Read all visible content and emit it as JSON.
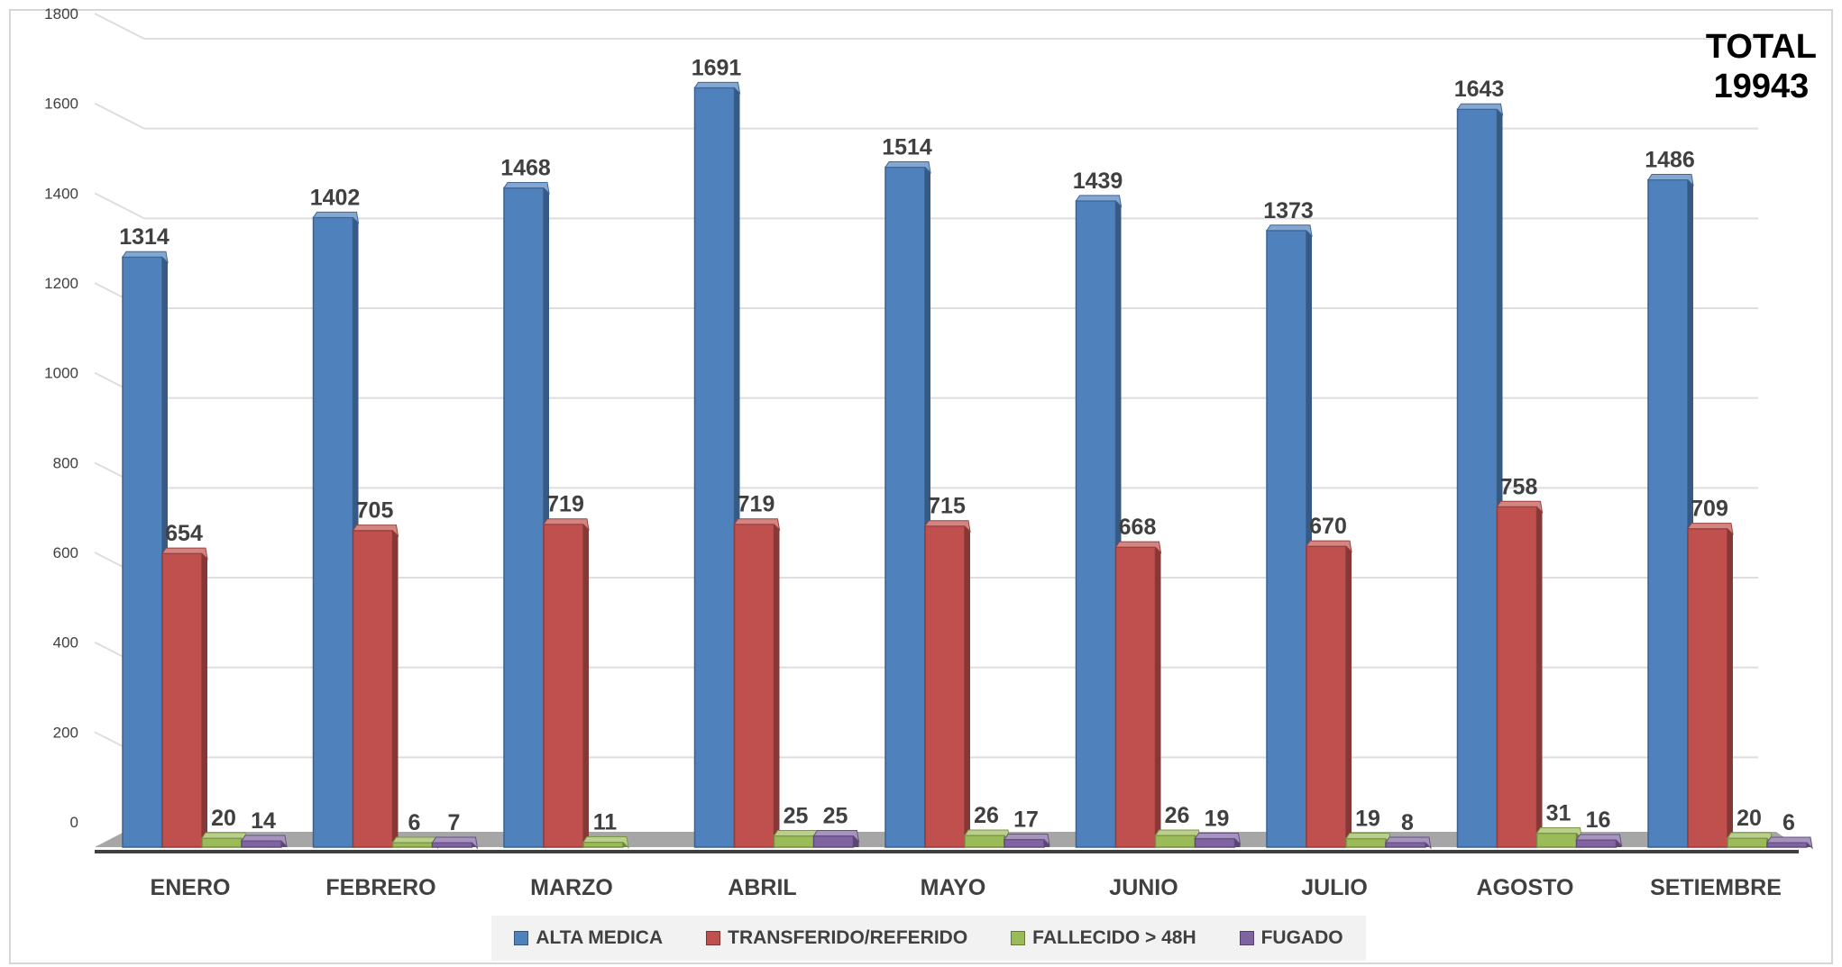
{
  "chart_data": {
    "type": "bar",
    "total": {
      "label": "TOTAL",
      "value": "19943"
    },
    "categories": [
      "ENERO",
      "FEBRERO",
      "MARZO",
      "ABRIL",
      "MAYO",
      "JUNIO",
      "JULIO",
      "AGOSTO",
      "SETIEMBRE"
    ],
    "series": [
      {
        "name": "ALTA MEDICA",
        "color": "#4f81bd",
        "values": [
          1314,
          1402,
          1468,
          1691,
          1514,
          1439,
          1373,
          1643,
          1486
        ]
      },
      {
        "name": "TRANSFERIDO/REFERIDO",
        "color": "#c0504d",
        "values": [
          654,
          705,
          719,
          719,
          715,
          668,
          670,
          758,
          709
        ]
      },
      {
        "name": "FALLECIDO > 48H",
        "color": "#9bbb59",
        "values": [
          20,
          6,
          11,
          25,
          26,
          26,
          19,
          31,
          20
        ]
      },
      {
        "name": "FUGADO",
        "color": "#8064a2",
        "values": [
          14,
          7,
          null,
          25,
          17,
          19,
          8,
          16,
          6
        ]
      }
    ],
    "y_ticks": [
      "0",
      "200",
      "400",
      "600",
      "800",
      "1000",
      "1200",
      "1400",
      "1600",
      "1800"
    ],
    "ylim": [
      0,
      1800
    ],
    "grid": true,
    "legend_position": "bottom"
  }
}
